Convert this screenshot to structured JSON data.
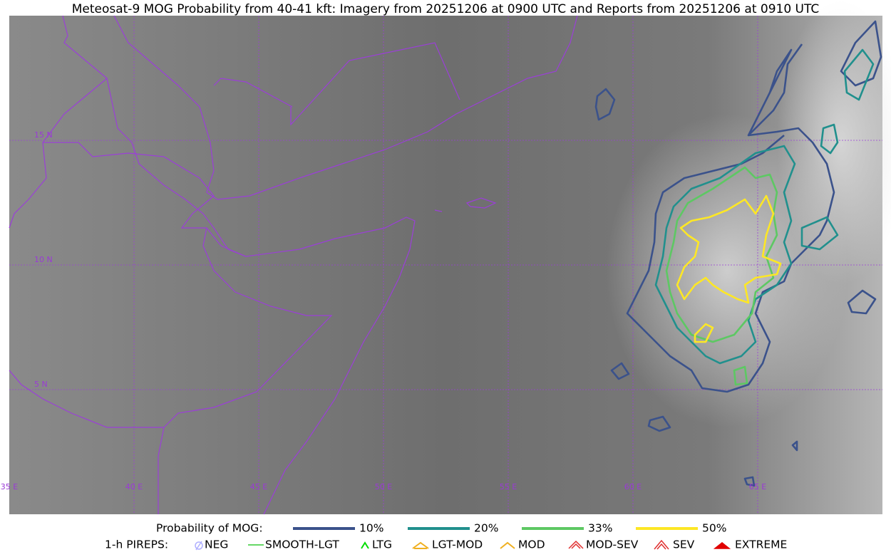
{
  "header": {
    "title": "Meteosat-9 MOG Probability from 40-41 kft: Imagery from 20251206 at 0900 UTC and Reports from 20251206 at 0910 UTC"
  },
  "map": {
    "lat_labels": [
      "15 N",
      "10 N",
      "5 N"
    ],
    "lon_labels": [
      "35 E",
      "40 E",
      "45 E",
      "50 E",
      "55 E",
      "60 E",
      "65 E"
    ]
  },
  "legend": {
    "probability": {
      "label": "Probability of MOG:",
      "levels": [
        {
          "label": "10%",
          "color": "#3b528b"
        },
        {
          "label": "20%",
          "color": "#21908d"
        },
        {
          "label": "33%",
          "color": "#5dc863"
        },
        {
          "label": "50%",
          "color": "#fde725"
        }
      ]
    },
    "pireps": {
      "label": "1-h PIREPS:",
      "items": [
        "NEG",
        "SMOOTH-LGT",
        "LTG",
        "LGT-MOD",
        "MOD",
        "MOD-SEV",
        "SEV",
        "EXTREME"
      ]
    }
  }
}
